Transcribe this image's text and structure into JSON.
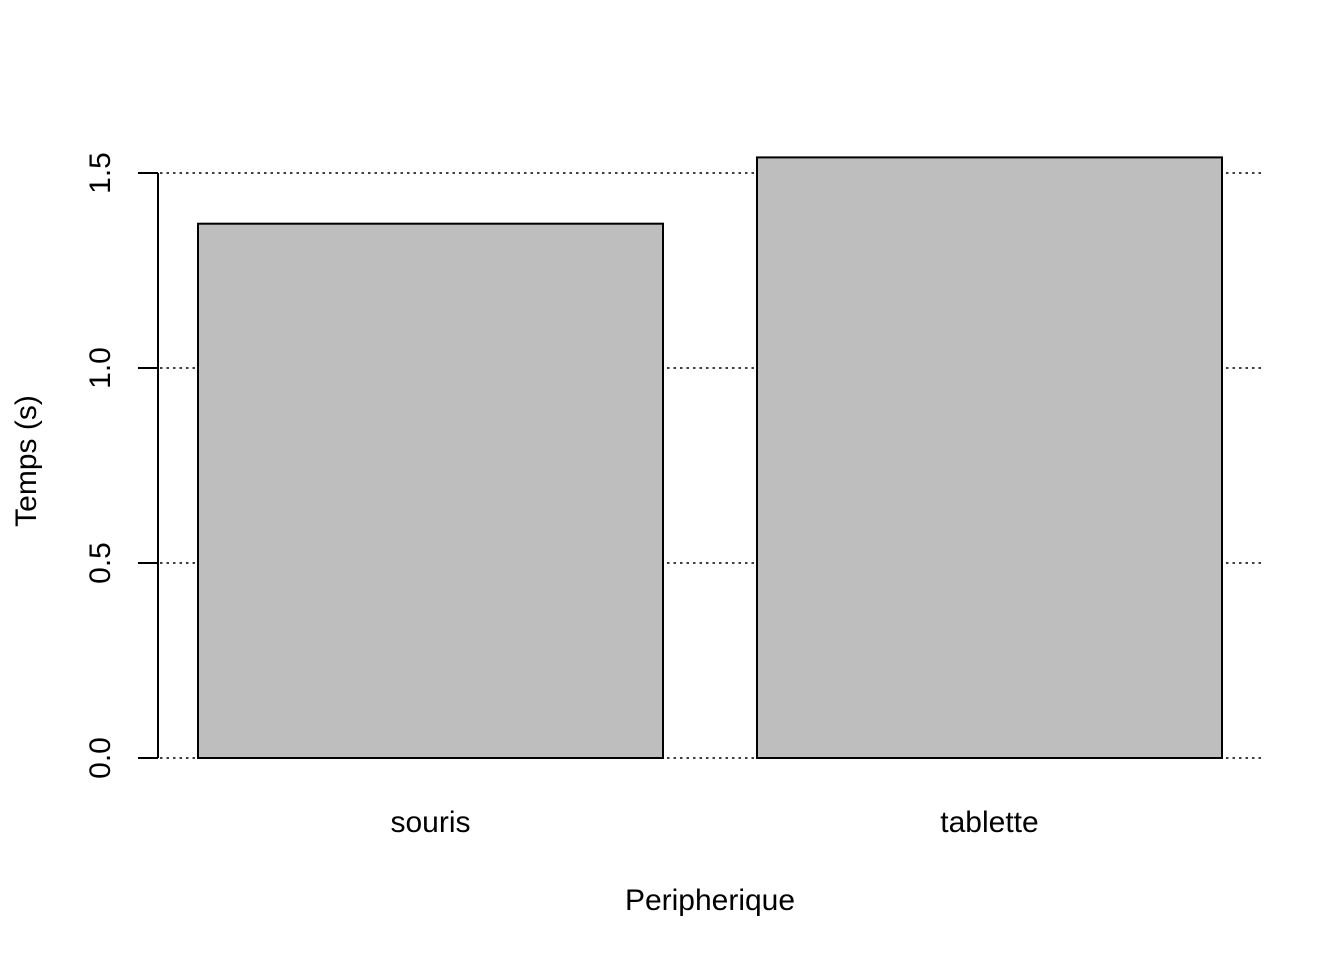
{
  "chart_data": {
    "type": "bar",
    "title": "",
    "xlabel": "Peripherique",
    "ylabel": "Temps (s)",
    "categories": [
      "souris",
      "tablette"
    ],
    "values": [
      1.37,
      1.54
    ],
    "ylim": [
      0,
      1.5
    ],
    "yticks": [
      0,
      0.5,
      1,
      1.5
    ],
    "ytick_labels": [
      "0.0",
      "0.5",
      "1.0",
      "1.5"
    ],
    "grid": "horizontal-dotted",
    "legend": "none",
    "bar_color": "#bebebe",
    "bar_edge_color": "#000000"
  }
}
